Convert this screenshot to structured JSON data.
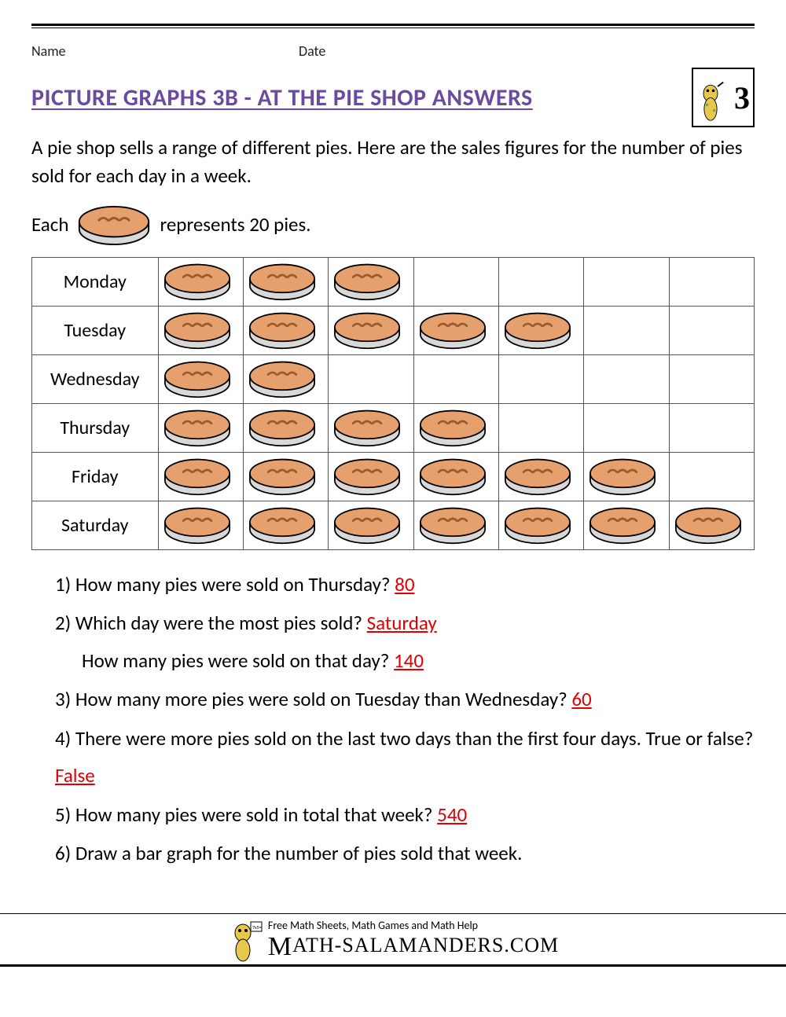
{
  "header": {
    "name_label": "Name",
    "date_label": "Date",
    "grade_number": "3"
  },
  "title": {
    "text": "PICTURE GRAPHS 3B - AT THE PIE SHOP ANSWERS",
    "color": "#6b4ba0"
  },
  "intro": "A pie shop sells a range of different pies. Here are the sales figures for the number of pies sold for each day in a week.",
  "key": {
    "prefix": "Each",
    "suffix": "represents 20 pies."
  },
  "pictograph": {
    "type": "pictograph",
    "columns": 7,
    "icon_represents": 20,
    "pie_colors": {
      "top_fill": "#e5a06e",
      "top_stroke": "#000000",
      "side_fill": "#d8d8d8",
      "side_stroke": "#000000",
      "slit_stroke": "#9a5a2c"
    },
    "rows": [
      {
        "day": "Monday",
        "count": 3
      },
      {
        "day": "Tuesday",
        "count": 5
      },
      {
        "day": "Wednesday",
        "count": 2
      },
      {
        "day": "Thursday",
        "count": 4
      },
      {
        "day": "Friday",
        "count": 6
      },
      {
        "day": "Saturday",
        "count": 7
      }
    ]
  },
  "questions": [
    {
      "n": "1)",
      "text": "How many pies were sold on Thursday? ",
      "answer": "80"
    },
    {
      "n": "2)",
      "text": "Which day were the most pies sold? ",
      "answer": "Saturday",
      "sub_text": "How many pies were sold on that day? ",
      "sub_answer": "140"
    },
    {
      "n": "3)",
      "text": "How many more pies were sold on Tuesday than Wednesday? ",
      "answer": "60"
    },
    {
      "n": "4)",
      "text": "There were more pies sold on the last two days than the first four days. True or false? ",
      "answer": "False"
    },
    {
      "n": "5)",
      "text": "How many pies were sold in total that week? ",
      "answer": "540"
    },
    {
      "n": "6)",
      "text": "Draw a bar graph for the number of pies sold that week.",
      "answer": ""
    }
  ],
  "footer": {
    "tagline": "Free Math Sheets, Math Games and Math Help",
    "site": "ATH-SALAMANDERS.COM",
    "site_prefix_glyph": "M"
  },
  "colors": {
    "answer": "#e20000",
    "text": "#111111",
    "rule": "#000000"
  }
}
